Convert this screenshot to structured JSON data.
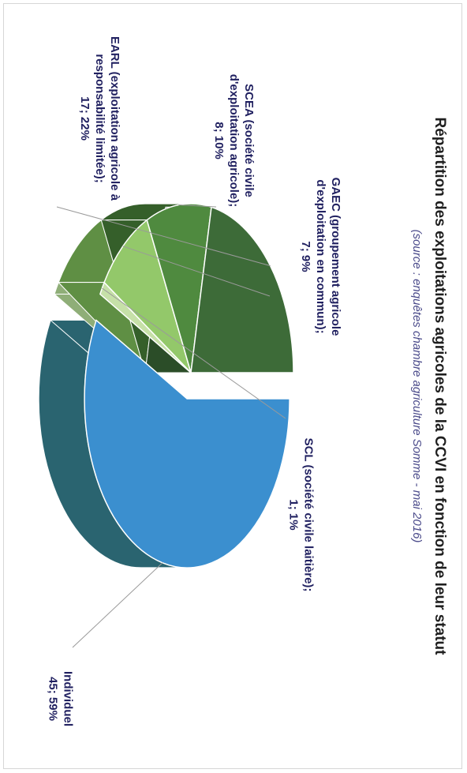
{
  "chart_data": {
    "type": "pie",
    "title": "Répartition des exploitations agricoles de la CCVI en fonction de leur statut",
    "subtitle": "(source : enquêtes chambre agriculture Somme - mai 2016)",
    "slices": [
      {
        "name": "Individuel",
        "value": 45,
        "percent": "59%",
        "label_lines": [
          "Individuel",
          "45; 59%"
        ],
        "color": "#3b8fcf",
        "side_color": "#2a6470"
      },
      {
        "name": "SCL (société civile laitière)",
        "value": 1,
        "percent": "1%",
        "label_lines": [
          "SCL (société civile laitière);",
          "1; 1%"
        ],
        "color": "#c6e0a8",
        "side_color": "#8fae78"
      },
      {
        "name": "GAEC (groupement agricole d'exploitation en commun)",
        "value": 7,
        "percent": "9%",
        "label_lines": [
          "GAEC (groupement agricole",
          "d'exploitation en commun);",
          "7; 9%"
        ],
        "color": "#93c86a",
        "side_color": "#5f8f44"
      },
      {
        "name": "SCEA (société civile d'exploitation agricole)",
        "value": 8,
        "percent": "10%",
        "label_lines": [
          "SCEA (société civile",
          "d'exploitation agricole);",
          "8; 10%"
        ],
        "color": "#4f8a3f",
        "side_color": "#355f2a"
      },
      {
        "name": "EARL (exploitation agricole à responsabilité limitée)",
        "value": 17,
        "percent": "22%",
        "label_lines": [
          "EARL (exploitation agricole à",
          "responsabilité limitée);",
          "17; 22%"
        ],
        "color": "#3d6b38",
        "side_color": "#2b4d28"
      }
    ]
  }
}
